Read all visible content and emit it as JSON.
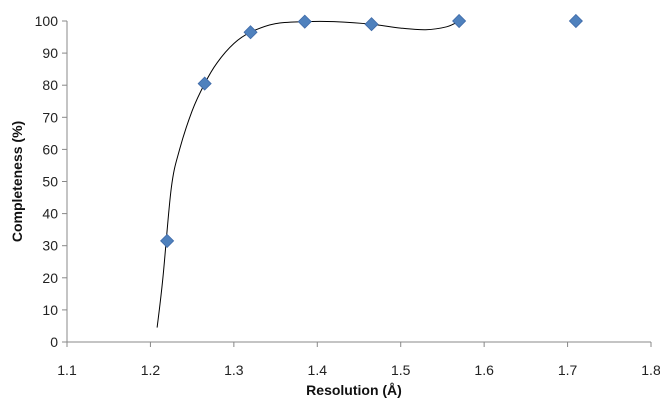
{
  "chart_data": {
    "type": "scatter",
    "title": "",
    "xlabel": "Resolution (Å)",
    "ylabel": "Completeness (%)",
    "xlim": [
      1.1,
      1.8
    ],
    "ylim": [
      0,
      100
    ],
    "x_ticks": [
      "1.1",
      "1.2",
      "1.3",
      "1.4",
      "1.5",
      "1.6",
      "1.7",
      "1.8"
    ],
    "y_ticks": [
      "0",
      "10",
      "20",
      "30",
      "40",
      "50",
      "60",
      "70",
      "80",
      "90",
      "100"
    ],
    "grid": false,
    "legend": "none",
    "marker_color": "#4f81bd",
    "series": [
      {
        "marker": "diamond",
        "x": [
          1.22,
          1.265,
          1.32,
          1.385,
          1.465,
          1.57,
          1.71
        ],
        "y": [
          31.5,
          80.5,
          96.5,
          99.8,
          99.0,
          100.0,
          100.0
        ]
      }
    ],
    "trendline": {
      "type": "smooth",
      "color": "#000000",
      "x": [
        1.208,
        1.215,
        1.225,
        1.235,
        1.25,
        1.265,
        1.28,
        1.3,
        1.32,
        1.35,
        1.385,
        1.42,
        1.465,
        1.5,
        1.53,
        1.555,
        1.57
      ],
      "y": [
        4.5,
        20,
        48,
        60,
        72,
        80.5,
        87,
        93,
        96.5,
        99.2,
        99.8,
        99.8,
        99.0,
        97.8,
        97.3,
        98.2,
        100.0
      ]
    }
  }
}
